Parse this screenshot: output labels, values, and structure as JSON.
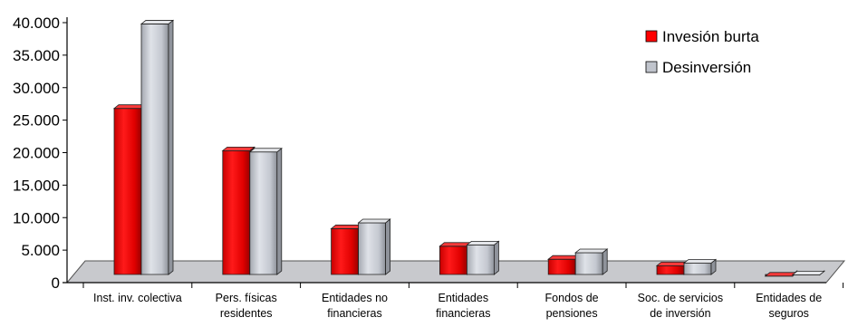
{
  "chart_data": {
    "type": "bar",
    "title": "",
    "xlabel": "",
    "ylabel": "",
    "categories": [
      [
        "Inst. inv. colectiva"
      ],
      [
        "Pers. físicas",
        "residentes"
      ],
      [
        "Entidades no",
        "financieras"
      ],
      [
        "Entidades",
        "financieras"
      ],
      [
        "Fondos de",
        "pensiones"
      ],
      [
        "Soc. de servicios",
        "de inversión"
      ],
      [
        "Entidades de",
        "seguros"
      ]
    ],
    "series": [
      {
        "name": "Invesión burta",
        "color": "#ff0000",
        "values": [
          26800,
          20300,
          8300,
          5600,
          3600,
          2600,
          1000
        ]
      },
      {
        "name": "Desinversión",
        "color": "#c0c4cc",
        "values": [
          39800,
          20100,
          9200,
          5800,
          4600,
          3000,
          1200
        ]
      }
    ],
    "yticks": [
      "0",
      "5.000",
      "10.000",
      "15.000",
      "20.000",
      "25.000",
      "30.000",
      "35.000",
      "40.000"
    ],
    "ylim": [
      0,
      40000
    ],
    "grid": false,
    "legend": "top-right"
  }
}
